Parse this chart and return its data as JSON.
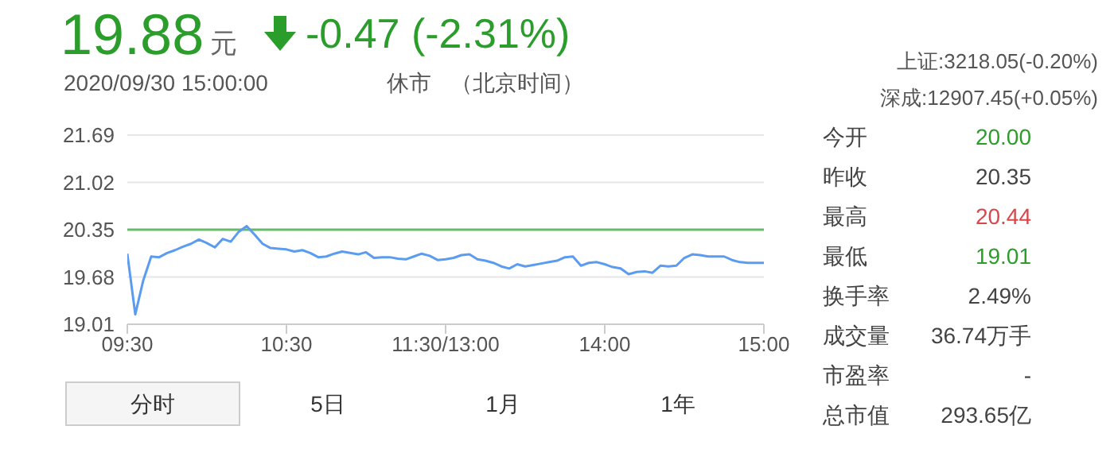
{
  "chart_data": {
    "type": "line",
    "title": "19.88",
    "categories": [
      "09:30",
      null,
      null,
      null,
      null,
      null,
      null,
      null,
      null,
      null,
      null,
      null,
      null,
      null,
      null,
      null,
      null,
      null,
      null,
      null,
      "10:30",
      null,
      null,
      null,
      null,
      null,
      null,
      null,
      null,
      null,
      null,
      null,
      null,
      null,
      null,
      null,
      null,
      null,
      null,
      null,
      "11:30/13:00",
      null,
      null,
      null,
      null,
      null,
      null,
      null,
      null,
      null,
      null,
      null,
      null,
      null,
      null,
      null,
      null,
      null,
      null,
      null,
      "14:00",
      null,
      null,
      null,
      null,
      null,
      null,
      null,
      null,
      null,
      null,
      null,
      null,
      null,
      null,
      null,
      null,
      null,
      null,
      null,
      "15:00"
    ],
    "annotations": [
      "-0.47 (-2.31%)",
      "2020/09/30 15:00:00",
      "休市",
      "（北京时间）",
      "上证:3218.05(-0.20%)",
      "深成:12907.45(+0.05%)",
      "今开",
      "20.00",
      "昨收",
      "20.35",
      "最高",
      "20.44",
      "最低",
      "19.01",
      "换手率",
      "2.49%",
      "成交量",
      "36.74万手",
      "市盈率",
      "-",
      "总市值",
      "293.65亿",
      "分时",
      "5日",
      "1月",
      "1年",
      "元"
    ],
    "series": [
      {
        "color": "#5b9cf0",
        "values": [
          20.01,
          19.15,
          19.63,
          19.97,
          19.96,
          20.02,
          20.06,
          20.11,
          20.15,
          20.21,
          20.16,
          20.1,
          20.22,
          20.18,
          20.32,
          20.4,
          20.28,
          20.15,
          20.09,
          20.08,
          20.07,
          20.04,
          20.06,
          20.02,
          19.96,
          19.97,
          20.01,
          20.04,
          20.02,
          20.0,
          20.03,
          19.95,
          19.96,
          19.96,
          19.94,
          19.93,
          19.97,
          20.01,
          19.98,
          19.92,
          19.93,
          19.95,
          19.99,
          20.0,
          19.93,
          19.91,
          19.88,
          19.83,
          19.8,
          19.86,
          19.83,
          19.85,
          19.87,
          19.89,
          19.91,
          19.96,
          19.97,
          19.84,
          19.88,
          19.89,
          19.86,
          19.82,
          19.8,
          19.72,
          19.75,
          19.76,
          19.74,
          19.84,
          19.83,
          19.84,
          19.95,
          20.0,
          19.99,
          19.97,
          19.97,
          19.97,
          19.92,
          19.89,
          19.88,
          19.88,
          19.88
        ]
      }
    ],
    "ylim": [
      19.01,
      21.69
    ],
    "yticks": [
      19.01,
      19.68,
      20.35,
      21.02,
      21.69
    ],
    "ref_lines": [
      {
        "axis": "y",
        "value": 20.35,
        "color": "#66bb66"
      }
    ],
    "grid": "y",
    "legend": false,
    "marker": "none",
    "line_style": "solid"
  }
}
